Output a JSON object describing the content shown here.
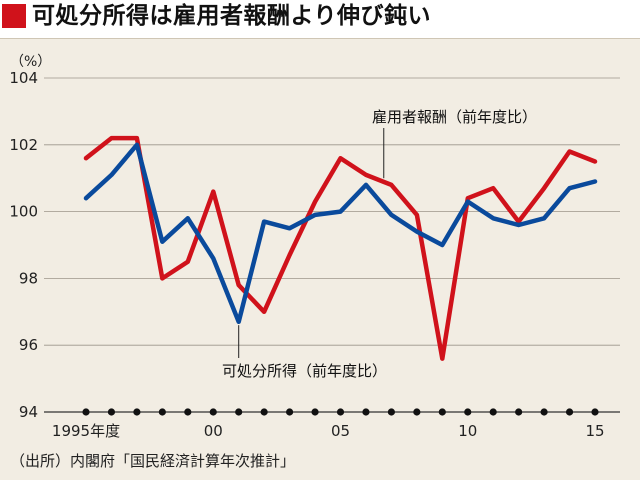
{
  "title": "可処分所得は雇用者報酬より伸び鈍い",
  "source": "（出所）内閣府「国民経済計算年次推計」",
  "colors": {
    "accent": "#d0121b",
    "disposable": "#0a4a9c",
    "compensation": "#d0121b"
  },
  "chart_data": {
    "type": "line",
    "ylabel_unit": "（%）",
    "ylim": [
      94,
      104
    ],
    "yticks": [
      "104",
      "102",
      "100",
      "98",
      "96",
      "94"
    ],
    "xlim": [
      1995,
      2015
    ],
    "xtick_labels": [
      {
        "x": 1995,
        "label": "1995年度"
      },
      {
        "x": 2000,
        "label": "00"
      },
      {
        "x": 2005,
        "label": "05"
      },
      {
        "x": 2010,
        "label": "10"
      },
      {
        "x": 2015,
        "label": "15"
      }
    ],
    "grid": true,
    "x": [
      1995,
      1996,
      1997,
      1998,
      1999,
      2000,
      2001,
      2002,
      2003,
      2004,
      2005,
      2006,
      2007,
      2008,
      2009,
      2010,
      2011,
      2012,
      2013,
      2014,
      2015
    ],
    "series": [
      {
        "name": "雇用者報酬（前年度比）",
        "color": "#d0121b",
        "values": [
          101.6,
          102.2,
          102.2,
          98.0,
          98.5,
          100.6,
          97.8,
          97.0,
          98.7,
          100.3,
          101.6,
          101.1,
          100.8,
          99.9,
          95.6,
          100.4,
          100.7,
          99.7,
          100.7,
          101.8,
          101.5
        ]
      },
      {
        "name": "可処分所得（前年度比）",
        "color": "#0a4a9c",
        "values": [
          100.4,
          101.1,
          102.0,
          99.1,
          99.8,
          98.6,
          96.7,
          99.7,
          99.5,
          99.9,
          100.0,
          100.8,
          99.9,
          99.4,
          99.0,
          100.3,
          99.8,
          99.6,
          99.8,
          100.7,
          100.9
        ]
      }
    ]
  }
}
